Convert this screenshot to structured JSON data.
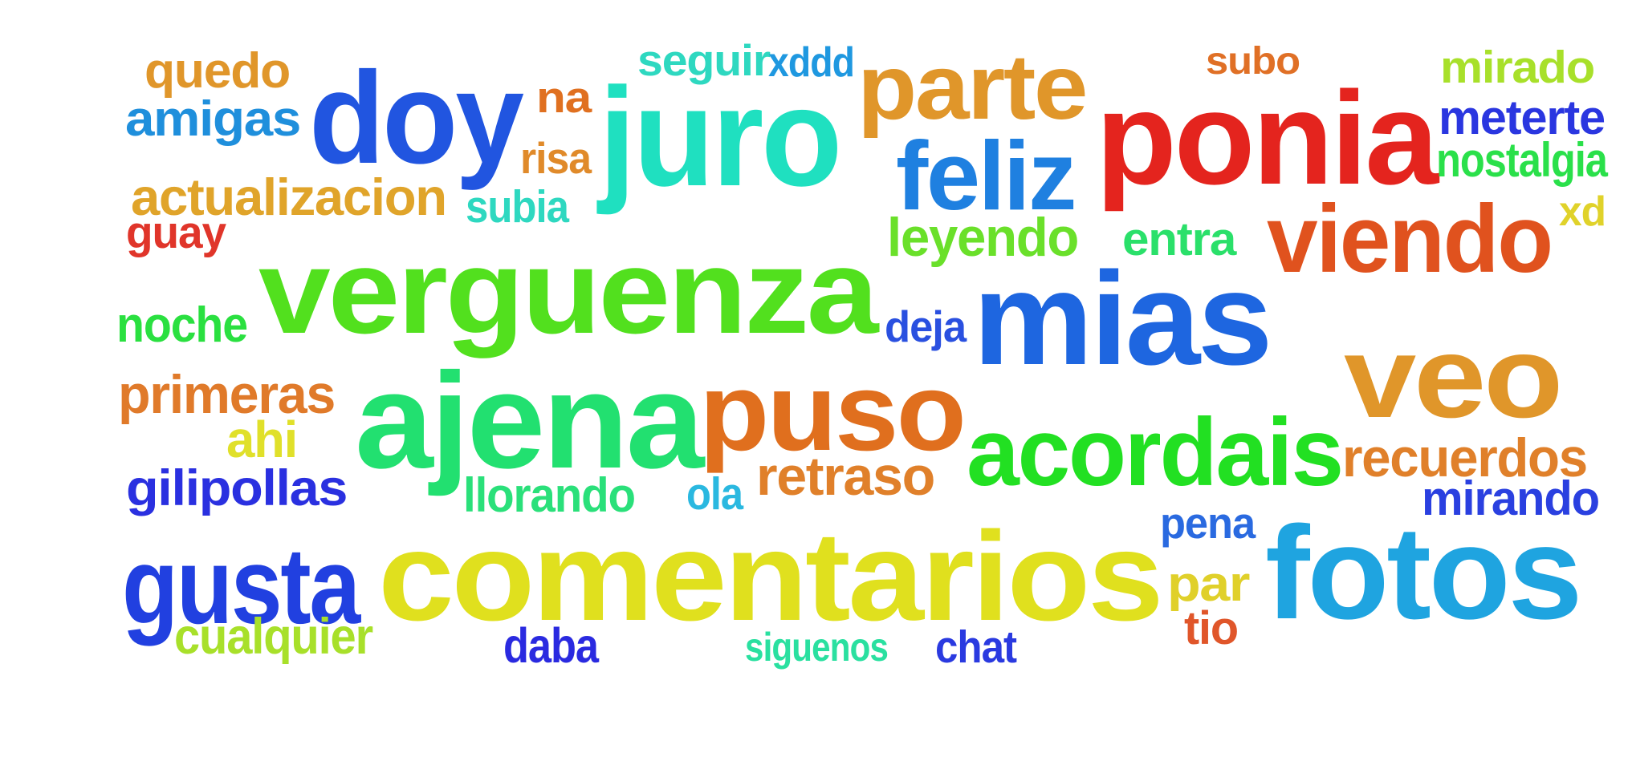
{
  "words": [
    {
      "text": "quedo",
      "color": "#e0962a"
    },
    {
      "text": "amigas",
      "color": "#1f8fdc"
    },
    {
      "text": "doy",
      "color": "#2155e0"
    },
    {
      "text": "na",
      "color": "#e07020"
    },
    {
      "text": "risa",
      "color": "#e08a2a"
    },
    {
      "text": "seguir",
      "color": "#2ed8c0"
    },
    {
      "text": "xddd",
      "color": "#1f98e0"
    },
    {
      "text": "juro",
      "color": "#1fe0c0"
    },
    {
      "text": "parte",
      "color": "#e0962a"
    },
    {
      "text": "feliz",
      "color": "#1f80e0"
    },
    {
      "text": "subo",
      "color": "#e07026"
    },
    {
      "text": "ponia",
      "color": "#e4241e"
    },
    {
      "text": "mirado",
      "color": "#a8e02a"
    },
    {
      "text": "meterte",
      "color": "#2a36e0"
    },
    {
      "text": "nostalgia",
      "color": "#2ae04a"
    },
    {
      "text": "actualizacion",
      "color": "#e0a42a"
    },
    {
      "text": "subia",
      "color": "#2ed8c0"
    },
    {
      "text": "guay",
      "color": "#e0352a"
    },
    {
      "text": "verguenza",
      "color": "#52e01e"
    },
    {
      "text": "leyendo",
      "color": "#6ae02a"
    },
    {
      "text": "entra",
      "color": "#2ae06a"
    },
    {
      "text": "viendo",
      "color": "#e0521e"
    },
    {
      "text": "xd",
      "color": "#e0d22a"
    },
    {
      "text": "noche",
      "color": "#2ae040"
    },
    {
      "text": "deja",
      "color": "#2a50e0"
    },
    {
      "text": "mias",
      "color": "#1e66e0"
    },
    {
      "text": "veo",
      "color": "#e0962a"
    },
    {
      "text": "primeras",
      "color": "#e07a2a"
    },
    {
      "text": "ajena",
      "color": "#22e070"
    },
    {
      "text": "puso",
      "color": "#e06f1e"
    },
    {
      "text": "acordais",
      "color": "#22e022"
    },
    {
      "text": "ahi",
      "color": "#e0e02a"
    },
    {
      "text": "recuerdos",
      "color": "#e0802a"
    },
    {
      "text": "gilipollas",
      "color": "#2a30e0"
    },
    {
      "text": "llorando",
      "color": "#2ae07a"
    },
    {
      "text": "ola",
      "color": "#2ab8e0"
    },
    {
      "text": "retraso",
      "color": "#e0802a"
    },
    {
      "text": "mirando",
      "color": "#2a40e0"
    },
    {
      "text": "pena",
      "color": "#2a6ae0"
    },
    {
      "text": "gusta",
      "color": "#2140e0"
    },
    {
      "text": "comentarios",
      "color": "#e0e01e"
    },
    {
      "text": "fotos",
      "color": "#1fa4e0"
    },
    {
      "text": "par",
      "color": "#e0d02a"
    },
    {
      "text": "tio",
      "color": "#e0562a"
    },
    {
      "text": "cualquier",
      "color": "#a8e02a"
    },
    {
      "text": "daba",
      "color": "#2a2ae0"
    },
    {
      "text": "siguenos",
      "color": "#2ae0a0"
    },
    {
      "text": "chat",
      "color": "#2a3ae0"
    }
  ]
}
